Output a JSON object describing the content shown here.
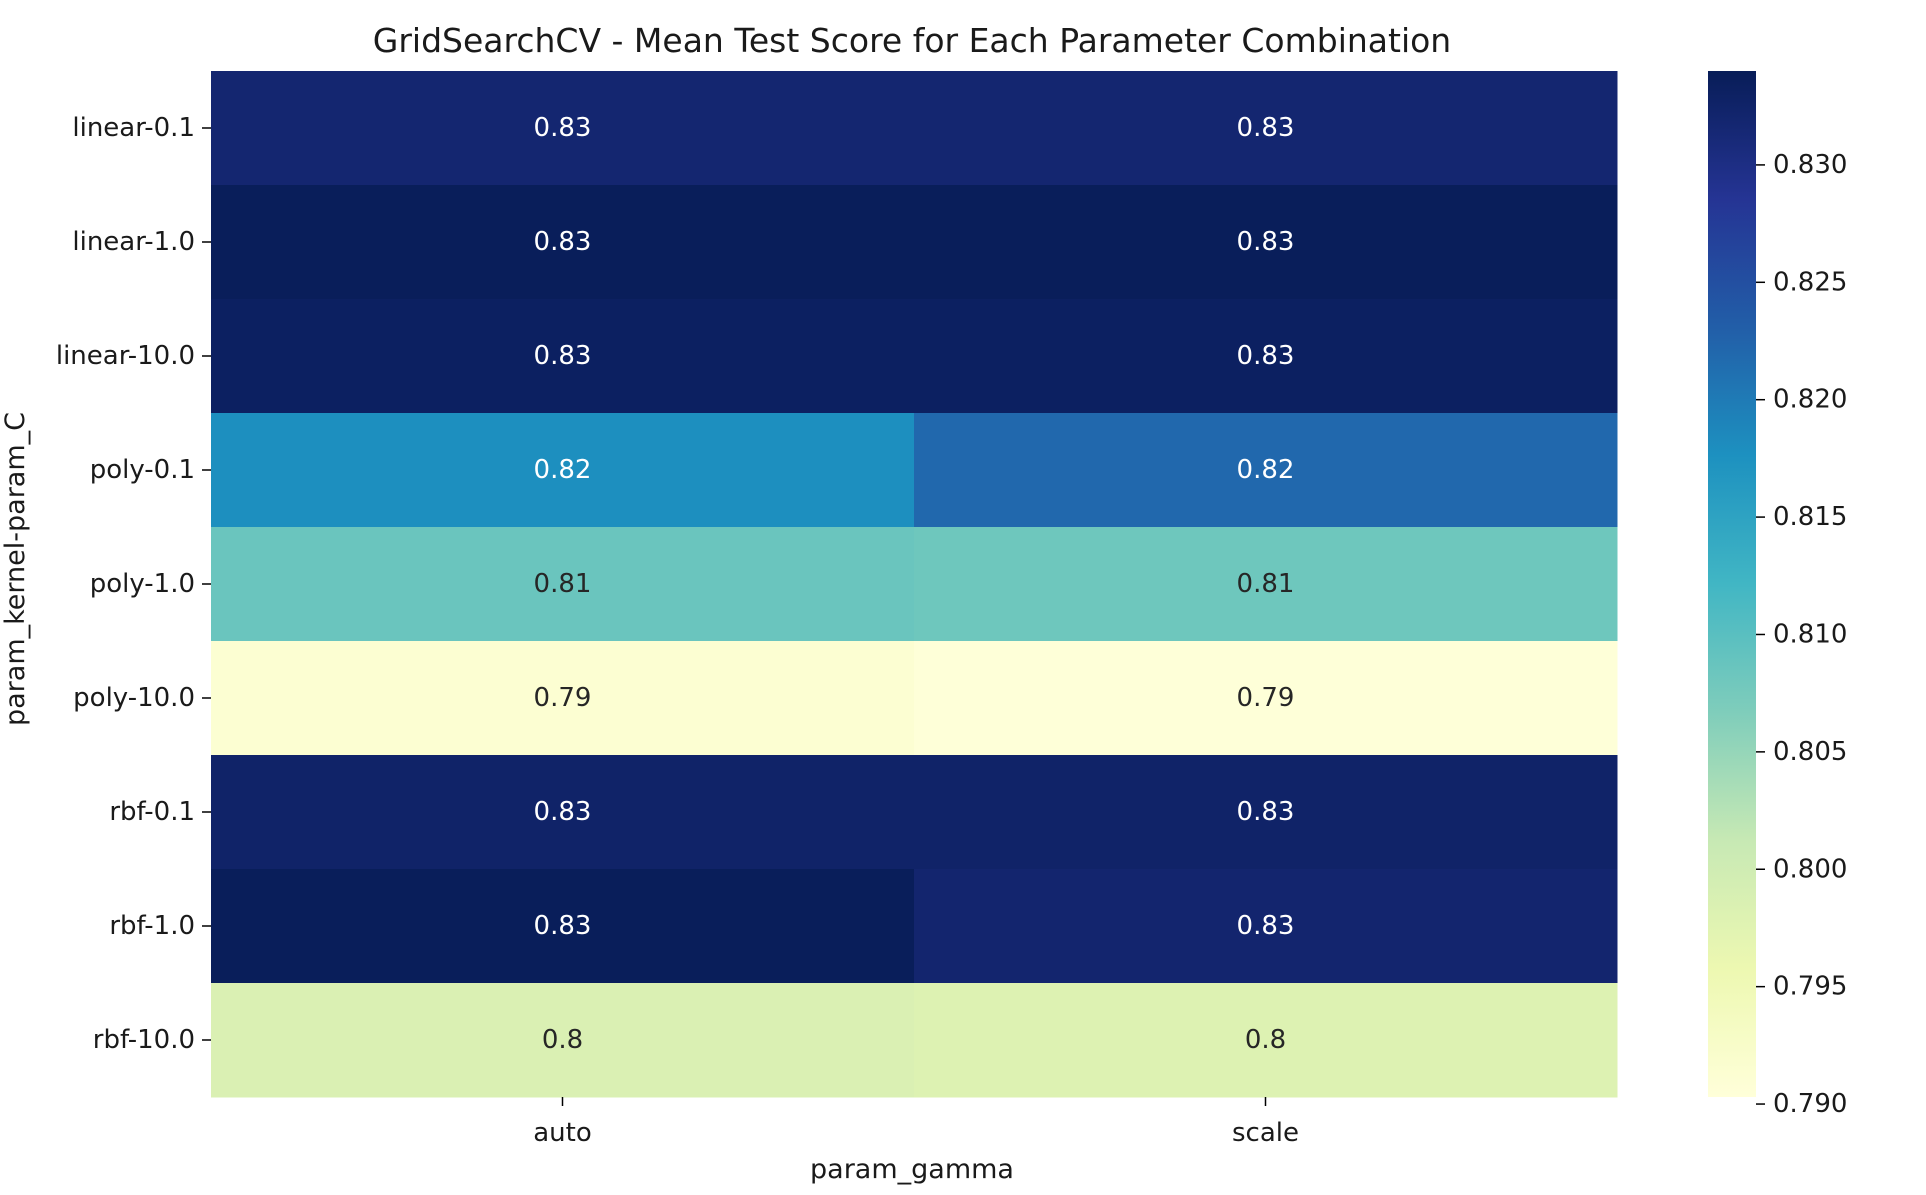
{
  "chart_data": {
    "type": "heatmap",
    "title": "GridSearchCV - Mean Test Score for Each Parameter Combination",
    "xlabel": "param_gamma",
    "ylabel": "param_kernel-param_C",
    "x_categories": [
      "auto",
      "scale"
    ],
    "y_categories": [
      "linear-0.1",
      "linear-1.0",
      "linear-10.0",
      "poly-0.1",
      "poly-1.0",
      "poly-10.0",
      "rbf-0.1",
      "rbf-1.0",
      "rbf-10.0"
    ],
    "values": [
      [
        0.8318,
        0.8318
      ],
      [
        0.8338,
        0.8338
      ],
      [
        0.8332,
        0.8332
      ],
      [
        0.8178,
        0.822
      ],
      [
        0.8085,
        0.8082
      ],
      [
        0.7912,
        0.7905
      ],
      [
        0.8325,
        0.8325
      ],
      [
        0.8338,
        0.832
      ],
      [
        0.7985,
        0.798
      ]
    ],
    "annotations": [
      [
        "0.83",
        "0.83"
      ],
      [
        "0.83",
        "0.83"
      ],
      [
        "0.83",
        "0.83"
      ],
      [
        "0.82",
        "0.82"
      ],
      [
        "0.81",
        "0.81"
      ],
      [
        "0.79",
        "0.79"
      ],
      [
        "0.83",
        "0.83"
      ],
      [
        "0.83",
        "0.83"
      ],
      [
        "0.8",
        "0.8"
      ]
    ],
    "colormap": "YlGnBu",
    "colorbar": {
      "range": [
        0.7903,
        0.834
      ],
      "ticks": [
        0.79,
        0.795,
        0.8,
        0.805,
        0.81,
        0.815,
        0.82,
        0.825,
        0.83
      ],
      "tick_labels": [
        "0.790",
        "0.795",
        "0.800",
        "0.805",
        "0.810",
        "0.815",
        "0.820",
        "0.825",
        "0.830"
      ]
    }
  }
}
